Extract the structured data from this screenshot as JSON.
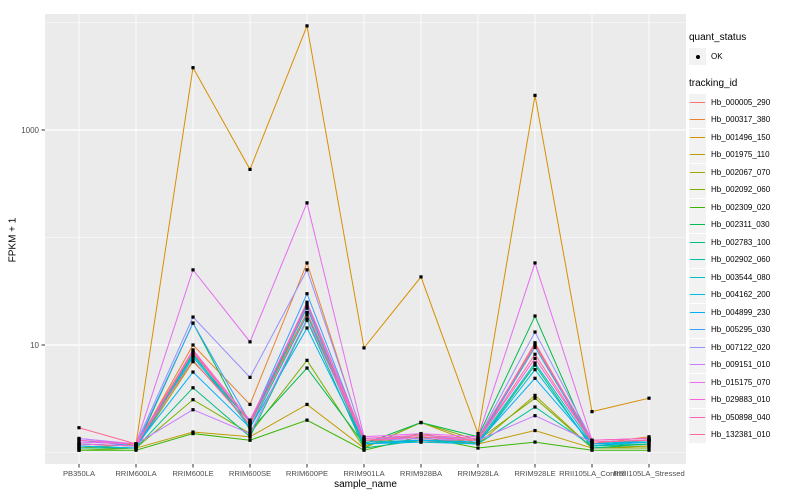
{
  "figure": {
    "background": "#FFFFFF",
    "panel_background": "#EBEBEB",
    "gridline_color": "#FFFFFF",
    "point_color": "#000000",
    "legend_key_background": "#F2F2F2",
    "axis_text_color": "#4D4D4D",
    "tick_color": "#333333"
  },
  "legend": {
    "quant_status_title": "quant_status",
    "quant_status_items": [
      "OK"
    ],
    "tracking_id_title": "tracking_id"
  },
  "chart_data": {
    "type": "line",
    "title": "",
    "xlabel": "sample_name",
    "ylabel": "FPKM + 1",
    "y_scale": "log10",
    "ylim": [
      0.8,
      12600
    ],
    "grid": true,
    "legend_position": "right",
    "y_ticks": [
      {
        "label": "1000",
        "value": 1000
      },
      {
        "label": "10",
        "value": 10
      }
    ],
    "y_minor_gridlines": [
      1,
      100,
      10000
    ],
    "categories": [
      "PB350LA",
      "RRIM600LA",
      "RRIM600LE",
      "RRIM600SE",
      "RRIM600PE",
      "RRIM901LA",
      "RRIM928BA",
      "RRIM928LA",
      "RRIM928LE",
      "RRII105LA_Control",
      "RRII105LA_Stressed"
    ],
    "quant_status": "OK",
    "series": [
      {
        "name": "Hb_000005_290",
        "color": "#F8766D",
        "values": [
          1.2,
          1.15,
          8.5,
          1.9,
          20,
          1.25,
          1.3,
          1.3,
          10.5,
          1.25,
          1.3
        ]
      },
      {
        "name": "Hb_000317_380",
        "color": "#EA8331",
        "values": [
          1.2,
          1.15,
          10,
          2.8,
          58,
          1.3,
          1.25,
          1.25,
          10,
          1.2,
          1.4
        ]
      },
      {
        "name": "Hb_001496_150",
        "color": "#D89000",
        "values": [
          1.1,
          1.2,
          3800,
          430,
          9300,
          9.4,
          43,
          1.5,
          2100,
          2.4,
          3.2
        ]
      },
      {
        "name": "Hb_001975_110",
        "color": "#C09B00",
        "values": [
          1.1,
          1.1,
          1.55,
          1.4,
          2.8,
          1.1,
          1.9,
          1.2,
          1.6,
          1.1,
          1.15
        ]
      },
      {
        "name": "Hb_002067_070",
        "color": "#A3A500",
        "values": [
          1.1,
          1.1,
          7.0,
          2.0,
          20,
          1.15,
          1.5,
          1.2,
          3.4,
          1.1,
          1.15
        ]
      },
      {
        "name": "Hb_002092_060",
        "color": "#7CAE00",
        "values": [
          1.05,
          1.1,
          3.1,
          1.5,
          7.2,
          1.1,
          1.9,
          1.3,
          3.2,
          1.1,
          1.1
        ]
      },
      {
        "name": "Hb_002309_020",
        "color": "#39B600",
        "values": [
          1.05,
          1.05,
          1.5,
          1.3,
          2.0,
          1.05,
          1.4,
          1.1,
          1.25,
          1.05,
          1.05
        ]
      },
      {
        "name": "Hb_002311_030",
        "color": "#00BB4E",
        "values": [
          1.1,
          1.1,
          16,
          1.6,
          6.1,
          1.2,
          1.9,
          1.4,
          18.6,
          1.15,
          1.2
        ]
      },
      {
        "name": "Hb_002783_100",
        "color": "#00BF7D",
        "values": [
          1.1,
          1.1,
          4.0,
          1.4,
          17,
          1.1,
          1.3,
          1.2,
          6.5,
          1.1,
          1.2
        ]
      },
      {
        "name": "Hb_002902_060",
        "color": "#00C1A3",
        "values": [
          1.15,
          1.1,
          8.3,
          1.7,
          19,
          1.2,
          1.3,
          1.2,
          2.65,
          1.15,
          1.3
        ]
      },
      {
        "name": "Hb_003544_080",
        "color": "#00BFC4",
        "values": [
          1.2,
          1.15,
          8.0,
          1.9,
          22,
          1.25,
          1.3,
          1.25,
          6.8,
          1.2,
          1.3
        ]
      },
      {
        "name": "Hb_004162_200",
        "color": "#00BAE0",
        "values": [
          1.15,
          1.1,
          7.7,
          1.8,
          24,
          1.2,
          1.25,
          1.2,
          5.9,
          1.15,
          1.25
        ]
      },
      {
        "name": "Hb_004899_230",
        "color": "#00B0F6",
        "values": [
          1.2,
          1.15,
          5.6,
          1.7,
          14.4,
          1.2,
          1.3,
          1.25,
          4.9,
          1.2,
          1.25
        ]
      },
      {
        "name": "Hb_005295_030",
        "color": "#35A2FF",
        "values": [
          1.3,
          1.15,
          16,
          1.9,
          30,
          1.3,
          1.35,
          1.3,
          9.5,
          1.25,
          1.3
        ]
      },
      {
        "name": "Hb_007122_020",
        "color": "#9590FF",
        "values": [
          1.35,
          1.2,
          18.2,
          5.0,
          50,
          1.35,
          1.4,
          1.35,
          13.2,
          1.3,
          1.35
        ]
      },
      {
        "name": "Hb_009151_010",
        "color": "#C77CFF",
        "values": [
          1.35,
          1.2,
          2.5,
          1.5,
          17.5,
          1.3,
          1.35,
          1.3,
          2.2,
          1.25,
          1.3
        ]
      },
      {
        "name": "Hb_015175_070",
        "color": "#E76BF3",
        "values": [
          1.25,
          1.2,
          50,
          10.7,
          210,
          1.4,
          1.5,
          1.4,
          58,
          1.3,
          1.35
        ]
      },
      {
        "name": "Hb_029883_010",
        "color": "#FA62DB",
        "values": [
          1.2,
          1.15,
          9.0,
          2.0,
          23,
          1.3,
          1.4,
          1.3,
          7.5,
          1.25,
          1.3
        ]
      },
      {
        "name": "Hb_050898_040",
        "color": "#FF62BC",
        "values": [
          1.3,
          1.2,
          8.8,
          1.9,
          25,
          1.35,
          1.45,
          1.35,
          10.2,
          1.3,
          1.35
        ]
      },
      {
        "name": "Hb_132381_010",
        "color": "#FF6A98",
        "values": [
          1.7,
          1.2,
          7.2,
          1.8,
          20,
          1.3,
          1.4,
          1.3,
          8.2,
          1.25,
          1.3
        ]
      }
    ]
  }
}
